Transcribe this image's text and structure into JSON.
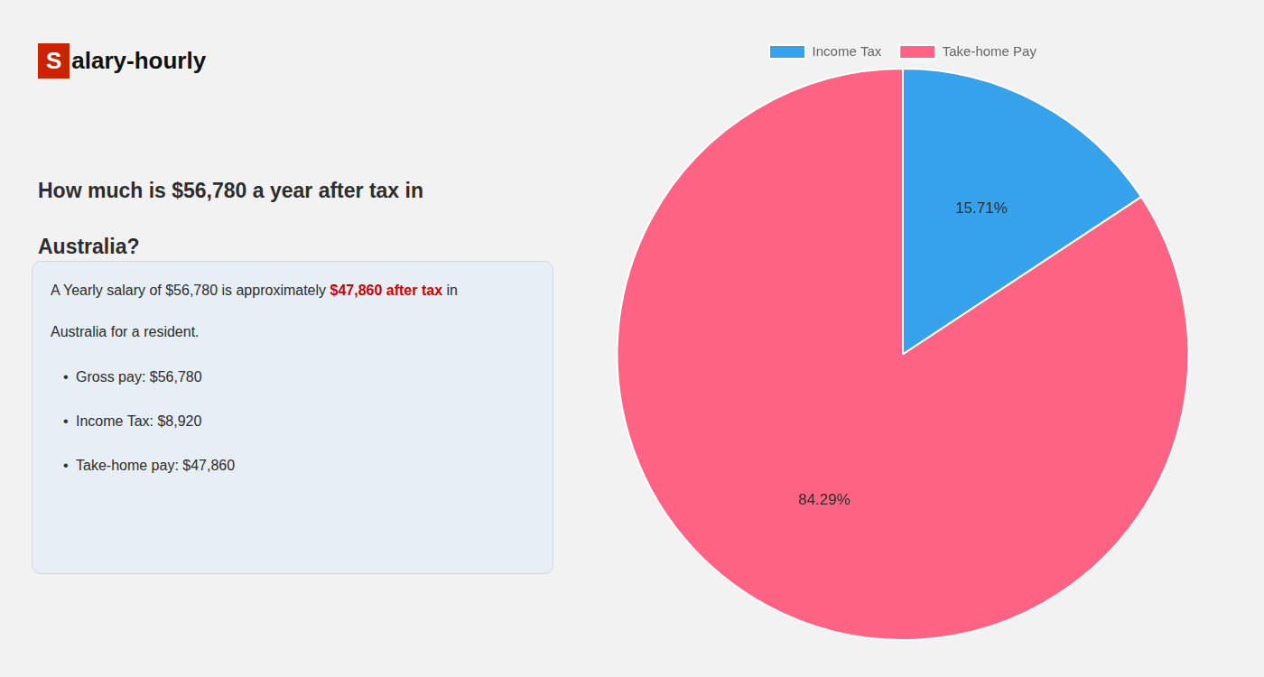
{
  "chart_data": {
    "type": "pie",
    "title": [
      "How much is $56,780 a year after tax in",
      "Australia?"
    ],
    "annotations": [
      [
        {
          "text": "S",
          "color": "#cc2200"
        },
        {
          "text": "alary-hourly"
        }
      ],
      [
        {
          "text": "A Yearly salary of $56,780 is approximately "
        },
        {
          "text": "$47,860 after tax",
          "color": "#cc0000"
        },
        {
          "text": " in"
        }
      ],
      [
        {
          "text": "Australia for a resident."
        }
      ],
      [
        {
          "text": "•"
        },
        {
          "text": "Gross pay: $56,780"
        }
      ],
      [
        {
          "text": "•"
        },
        {
          "text": "Income Tax: $8,920"
        }
      ],
      [
        {
          "text": "•"
        },
        {
          "text": "Take-home pay: $47,860"
        }
      ]
    ],
    "categories": [
      "Income Tax",
      "Take-home Pay"
    ],
    "values": [
      15.71,
      84.29
    ],
    "value_labels": [
      "15.71%",
      "84.29%"
    ],
    "data_labels": true,
    "legend": "top"
  }
}
